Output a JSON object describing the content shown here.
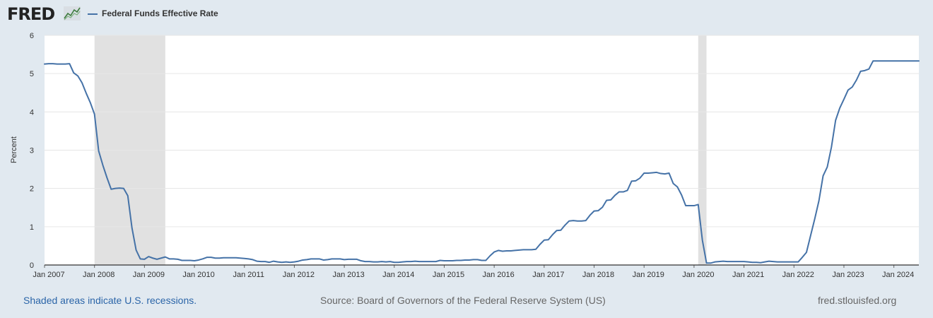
{
  "header": {
    "logo_text": "FRED",
    "logo_icon": "line-chart-icon",
    "legend_label": "Federal Funds Effective Rate"
  },
  "footer": {
    "recession_note": "Shaded areas indicate U.S. recessions.",
    "source": "Source: Board of Governors of the Federal Reserve System (US)",
    "site": "fred.stlouisfed.org"
  },
  "colors": {
    "background": "#e1e9f0",
    "plot_background": "#ffffff",
    "series": "#4572a7",
    "recession_shade": "#e1e1e1",
    "link": "#2b65a8"
  },
  "chart_data": {
    "type": "line",
    "title": "",
    "xlabel": "",
    "ylabel": "Percent",
    "ylim": [
      0,
      6
    ],
    "yticks": [
      "0",
      "1",
      "2",
      "3",
      "4",
      "5",
      "6"
    ],
    "xticks": [
      "Jan 2007",
      "Jan 2008",
      "Jan 2009",
      "Jan 2010",
      "Jan 2011",
      "Jan 2012",
      "Jan 2013",
      "Jan 2014",
      "Jan 2015",
      "Jan 2016",
      "Jan 2017",
      "Jan 2018",
      "Jan 2019",
      "Jan 2020",
      "Jan 2021",
      "Jan 2022",
      "Jan 2023",
      "Jan 2024"
    ],
    "x_range": [
      "2007-01",
      "2024-07"
    ],
    "grid": true,
    "recessions": [
      {
        "start": "2008-01",
        "end": "2009-06"
      },
      {
        "start": "2020-02",
        "end": "2020-04"
      }
    ],
    "series": [
      {
        "name": "Federal Funds Effective Rate",
        "frequency": "monthly",
        "start": "2007-01",
        "values": [
          5.25,
          5.26,
          5.26,
          5.25,
          5.25,
          5.25,
          5.26,
          5.02,
          4.94,
          4.76,
          4.49,
          4.24,
          3.94,
          2.98,
          2.61,
          2.28,
          1.98,
          2.0,
          2.01,
          2.0,
          1.81,
          0.97,
          0.39,
          0.16,
          0.15,
          0.22,
          0.18,
          0.15,
          0.18,
          0.21,
          0.16,
          0.16,
          0.15,
          0.12,
          0.12,
          0.12,
          0.11,
          0.13,
          0.16,
          0.2,
          0.2,
          0.18,
          0.18,
          0.19,
          0.19,
          0.19,
          0.19,
          0.18,
          0.17,
          0.16,
          0.14,
          0.1,
          0.09,
          0.09,
          0.07,
          0.1,
          0.08,
          0.07,
          0.08,
          0.07,
          0.08,
          0.1,
          0.13,
          0.14,
          0.16,
          0.16,
          0.16,
          0.13,
          0.14,
          0.16,
          0.16,
          0.16,
          0.14,
          0.15,
          0.15,
          0.15,
          0.11,
          0.09,
          0.09,
          0.08,
          0.08,
          0.09,
          0.08,
          0.09,
          0.07,
          0.07,
          0.08,
          0.09,
          0.09,
          0.1,
          0.09,
          0.09,
          0.09,
          0.09,
          0.09,
          0.12,
          0.11,
          0.11,
          0.11,
          0.12,
          0.12,
          0.13,
          0.13,
          0.14,
          0.14,
          0.12,
          0.12,
          0.24,
          0.34,
          0.38,
          0.36,
          0.37,
          0.37,
          0.38,
          0.39,
          0.4,
          0.4,
          0.4,
          0.41,
          0.54,
          0.65,
          0.66,
          0.79,
          0.9,
          0.91,
          1.04,
          1.15,
          1.16,
          1.15,
          1.15,
          1.16,
          1.3,
          1.41,
          1.42,
          1.51,
          1.69,
          1.7,
          1.82,
          1.91,
          1.91,
          1.95,
          2.19,
          2.2,
          2.27,
          2.4,
          2.4,
          2.41,
          2.42,
          2.39,
          2.38,
          2.4,
          2.13,
          2.04,
          1.83,
          1.55,
          1.55,
          1.55,
          1.58,
          0.65,
          0.05,
          0.05,
          0.08,
          0.09,
          0.1,
          0.09,
          0.09,
          0.09,
          0.09,
          0.09,
          0.08,
          0.07,
          0.07,
          0.06,
          0.08,
          0.1,
          0.09,
          0.08,
          0.08,
          0.08,
          0.08,
          0.08,
          0.08,
          0.2,
          0.33,
          0.77,
          1.21,
          1.68,
          2.33,
          2.56,
          3.08,
          3.78,
          4.1,
          4.33,
          4.57,
          4.65,
          4.83,
          5.06,
          5.08,
          5.12,
          5.33,
          5.33,
          5.33,
          5.33,
          5.33,
          5.33,
          5.33,
          5.33,
          5.33,
          5.33,
          5.33,
          5.33
        ]
      }
    ]
  }
}
